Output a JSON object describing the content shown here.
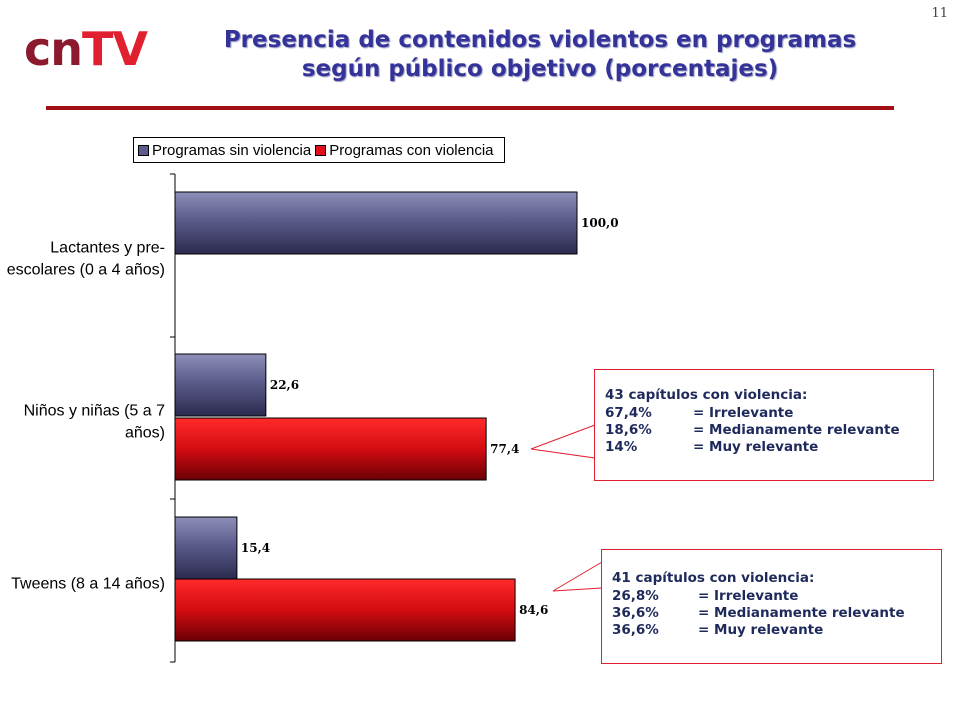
{
  "page_number": "11",
  "logo": {
    "part1": "cn",
    "part2": "TV"
  },
  "title": {
    "line1": "Presencia de contenidos violentos en programas",
    "line2": "según público objetivo (porcentajes)"
  },
  "colors": {
    "sin_violencia": "#5c5c8c",
    "con_violencia": "#e0101a",
    "title": "#333399",
    "accent": "#a00f16"
  },
  "chart_data": {
    "type": "bar",
    "orientation": "horizontal",
    "categories": [
      [
        "Lactantes y pre-",
        "escolares (0 a 4 años)"
      ],
      [
        "Niños y niñas (5 a 7",
        "años)"
      ],
      [
        "Tweens (8 a 14 años)"
      ]
    ],
    "series": [
      {
        "name": "Programas sin violencia",
        "values": [
          100.0,
          22.6,
          15.4
        ],
        "labels": [
          "100,0",
          "22,6",
          "15,4"
        ]
      },
      {
        "name": "Programas con violencia",
        "values": [
          null,
          77.4,
          84.6
        ],
        "labels": [
          "",
          "77,4",
          "84,6"
        ]
      }
    ],
    "xlim": [
      0,
      100
    ],
    "legend": "top"
  },
  "notes": [
    {
      "heading": "43 capítulos con violencia:",
      "rows": [
        {
          "pct": "67,4%",
          "label": "= Irrelevante"
        },
        {
          "pct": "18,6%",
          "label": "= Medianamente relevante"
        },
        {
          "pct": "14%",
          "label": "= Muy relevante"
        }
      ]
    },
    {
      "heading": "41 capítulos con violencia:",
      "rows": [
        {
          "pct": "26,8%",
          "label": "= Irrelevante"
        },
        {
          "pct": "36,6%",
          "label": "= Medianamente relevante"
        },
        {
          "pct": "36,6%",
          "label": "= Muy relevante"
        }
      ]
    }
  ]
}
